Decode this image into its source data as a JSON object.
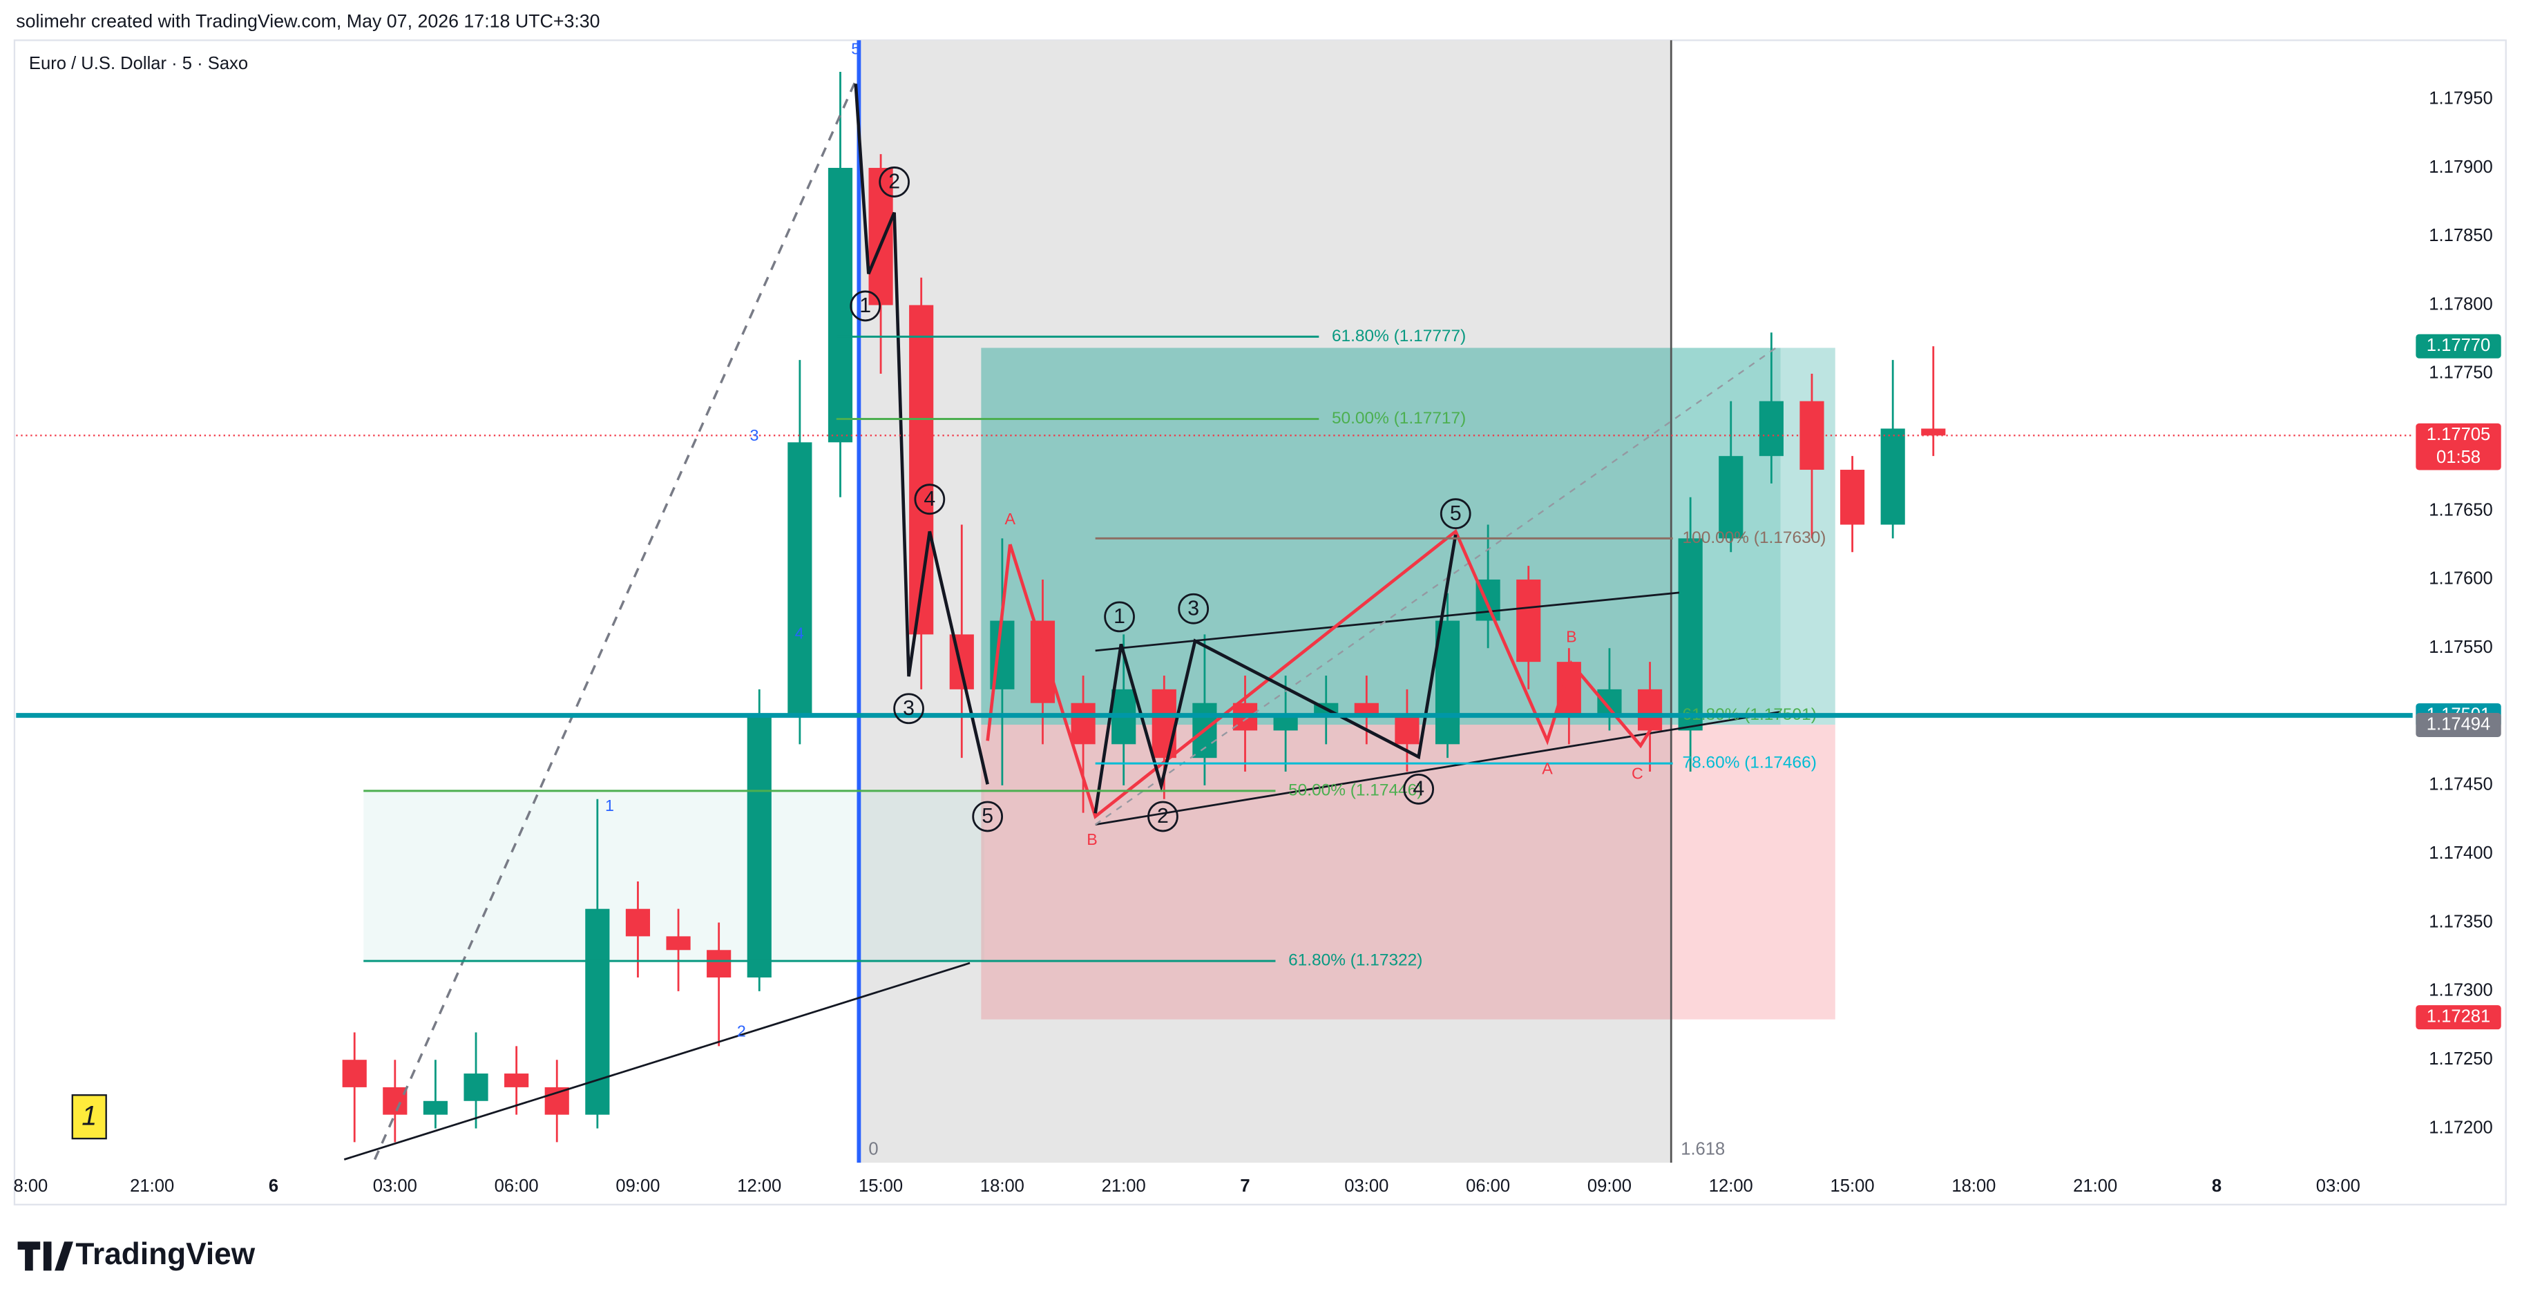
{
  "header": {
    "credit": "solimehr created with TradingView.com, May 07, 2026 17:18 UTC+3:30",
    "logo": "TradingView"
  },
  "chart_data": {
    "type": "candlestick",
    "title": "Euro / U.S. Dollar · 5 · Saxo",
    "xlim": [
      -6.36,
      52.84
    ],
    "ylim": [
      1.17175,
      1.17993
    ],
    "xticks": [
      {
        "value": -6,
        "label": "8:00"
      },
      {
        "value": -3,
        "label": "21:00"
      },
      {
        "value": 0,
        "label": "6"
      },
      {
        "value": 3,
        "label": "03:00"
      },
      {
        "value": 6,
        "label": "06:00"
      },
      {
        "value": 9,
        "label": "09:00"
      },
      {
        "value": 12,
        "label": "12:00"
      },
      {
        "value": 15,
        "label": "15:00"
      },
      {
        "value": 18,
        "label": "18:00"
      },
      {
        "value": 21,
        "label": "21:00"
      },
      {
        "value": 24,
        "label": "7"
      },
      {
        "value": 27,
        "label": "03:00"
      },
      {
        "value": 30,
        "label": "06:00"
      },
      {
        "value": 33,
        "label": "09:00"
      },
      {
        "value": 36,
        "label": "12:00"
      },
      {
        "value": 39,
        "label": "15:00"
      },
      {
        "value": 42,
        "label": "18:00"
      },
      {
        "value": 45,
        "label": "21:00"
      },
      {
        "value": 48,
        "label": "8"
      },
      {
        "value": 51,
        "label": "03:00"
      }
    ],
    "yticks": [
      {
        "value": 1.172,
        "label": "1.17200"
      },
      {
        "value": 1.1725,
        "label": "1.17250"
      },
      {
        "value": 1.173,
        "label": "1.17300"
      },
      {
        "value": 1.1735,
        "label": "1.17350"
      },
      {
        "value": 1.174,
        "label": "1.17400"
      },
      {
        "value": 1.1745,
        "label": "1.17450"
      },
      {
        "value": 1.175,
        "label": "1.17500"
      },
      {
        "value": 1.1755,
        "label": "1.17550"
      },
      {
        "value": 1.176,
        "label": "1.17600"
      },
      {
        "value": 1.1765,
        "label": "1.17650"
      },
      {
        "value": 1.177,
        "label": "1.17700"
      },
      {
        "value": 1.1775,
        "label": "1.17750"
      },
      {
        "value": 1.178,
        "label": "1.17800"
      },
      {
        "value": 1.1785,
        "label": "1.17850"
      },
      {
        "value": 1.179,
        "label": "1.17900"
      },
      {
        "value": 1.1795,
        "label": "1.17950"
      }
    ],
    "up_color": "#089981",
    "down_color": "#f23645",
    "x": [
      2,
      3,
      4,
      5,
      6,
      7,
      8,
      9,
      10,
      11,
      12,
      13,
      14,
      15,
      16,
      17,
      18,
      19,
      20,
      21,
      22,
      23,
      24,
      25,
      26,
      27,
      28,
      29,
      30,
      31,
      32,
      33,
      34,
      35,
      36,
      37,
      38,
      39,
      40,
      41
    ],
    "open": [
      1.1725,
      1.1723,
      1.1721,
      1.1722,
      1.1724,
      1.1723,
      1.1721,
      1.1736,
      1.1734,
      1.1733,
      1.1731,
      1.175,
      1.177,
      1.179,
      1.178,
      1.1756,
      1.1752,
      1.1757,
      1.1751,
      1.1748,
      1.1752,
      1.1747,
      1.1751,
      1.1749,
      1.175,
      1.1751,
      1.175,
      1.1748,
      1.1757,
      1.176,
      1.1754,
      1.175,
      1.1752,
      1.1749,
      1.1763,
      1.1769,
      1.1773,
      1.1768,
      1.1764,
      1.1771
    ],
    "high": [
      1.1727,
      1.1725,
      1.1725,
      1.1727,
      1.1726,
      1.1725,
      1.1744,
      1.1738,
      1.1736,
      1.1735,
      1.1752,
      1.1776,
      1.1797,
      1.1791,
      1.1782,
      1.1764,
      1.1763,
      1.176,
      1.1753,
      1.1756,
      1.1753,
      1.1756,
      1.1753,
      1.1753,
      1.1753,
      1.1753,
      1.1752,
      1.1759,
      1.1764,
      1.1761,
      1.1755,
      1.1755,
      1.1754,
      1.1766,
      1.1773,
      1.1778,
      1.1775,
      1.1769,
      1.1776,
      1.1777
    ],
    "low": [
      1.1719,
      1.1719,
      1.172,
      1.172,
      1.1721,
      1.1719,
      1.172,
      1.1731,
      1.173,
      1.1726,
      1.173,
      1.1748,
      1.1766,
      1.1775,
      1.1752,
      1.1747,
      1.1745,
      1.1748,
      1.1743,
      1.1745,
      1.1744,
      1.1745,
      1.1746,
      1.1746,
      1.1748,
      1.1748,
      1.1746,
      1.1747,
      1.1755,
      1.1752,
      1.1748,
      1.1749,
      1.1746,
      1.1746,
      1.1762,
      1.1767,
      1.1763,
      1.1762,
      1.1763,
      1.1769
    ],
    "close": [
      1.1723,
      1.1721,
      1.1722,
      1.1724,
      1.1723,
      1.1721,
      1.1736,
      1.1734,
      1.1733,
      1.1731,
      1.175,
      1.177,
      1.179,
      1.178,
      1.1756,
      1.1752,
      1.1757,
      1.1751,
      1.1748,
      1.1752,
      1.1747,
      1.1751,
      1.1749,
      1.175,
      1.1751,
      1.175,
      1.1748,
      1.1757,
      1.176,
      1.1754,
      1.175,
      1.1752,
      1.1749,
      1.1763,
      1.1769,
      1.1773,
      1.1768,
      1.1764,
      1.1771,
      1.17705
    ],
    "fib_levels": [
      {
        "label": "61.80% (1.17777)",
        "value": 1.17777,
        "color": "#089981"
      },
      {
        "label": "50.00% (1.17717)",
        "value": 1.17717,
        "color": "#4caf50"
      },
      {
        "label": "100.00% (1.17630)",
        "value": 1.1763,
        "color": "#8d6e63"
      },
      {
        "label": "61.80% (1.17501)",
        "value": 1.17501,
        "color": "#4caf50"
      },
      {
        "label": "78.60% (1.17466)",
        "value": 1.17466,
        "color": "#00bcd4"
      },
      {
        "label": "50.00% (1.17446)",
        "value": 1.17446,
        "color": "#4caf50"
      },
      {
        "label": "61.80% (1.17322)",
        "value": 1.17322,
        "color": "#089981"
      }
    ],
    "price_labels": [
      {
        "value": 1.1777,
        "label": "1.17770",
        "color": "#089981"
      },
      {
        "value": 1.17705,
        "label": "1.17705",
        "color": "#f23645",
        "countdown": "01:58"
      },
      {
        "value": 1.17501,
        "label": "1.17501",
        "color": "#0097a7"
      },
      {
        "value": 1.17494,
        "label": "1.17494",
        "color": "#787b86"
      },
      {
        "value": 1.17281,
        "label": "1.17281",
        "color": "#f23645"
      }
    ],
    "wave_labels": [
      "1",
      "2",
      "3",
      "4",
      "5",
      "1",
      "2",
      "3",
      "4",
      "5"
    ],
    "corrective_labels": [
      "A",
      "B",
      "A",
      "B",
      "C"
    ],
    "minor_labels": [
      "5",
      "3",
      "4",
      "1",
      "2"
    ],
    "fib_extension_labels": [
      "0",
      "1.618"
    ],
    "marker": "1"
  }
}
